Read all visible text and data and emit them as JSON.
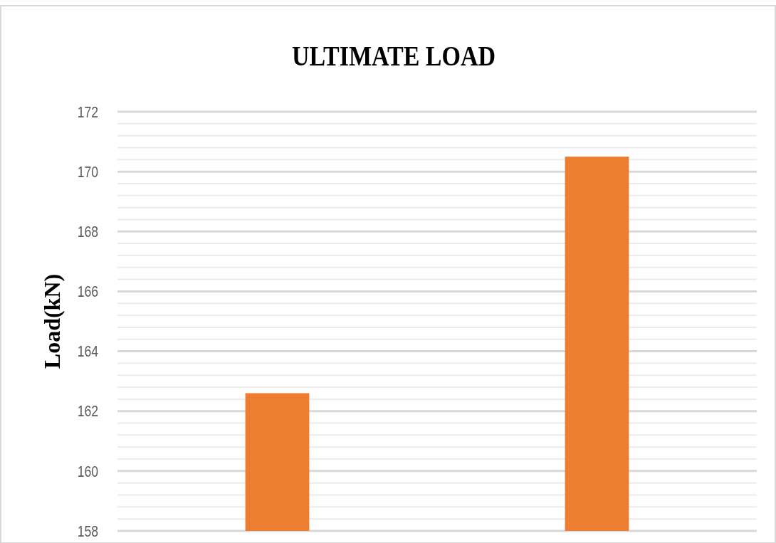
{
  "chart_data": {
    "type": "bar",
    "title": "ULTIMATE LOAD",
    "ylabel": "Load(kN)",
    "categories": [
      null,
      null
    ],
    "values": [
      162.6,
      170.5
    ],
    "color": "#ed7d31",
    "ylim": [
      158,
      172
    ],
    "yticks": [
      158,
      {
        "value": 158.4,
        "label": null
      },
      {
        "value": 158.8,
        "label": null
      },
      {
        "value": 159.2,
        "label": null
      },
      {
        "value": 159.6,
        "label": null
      },
      160,
      {
        "value": 160.4,
        "label": null
      },
      {
        "value": 160.8,
        "label": null
      },
      {
        "value": 161.2,
        "label": null
      },
      {
        "value": 161.6,
        "label": null
      },
      162,
      {
        "value": 162.4,
        "label": null
      },
      {
        "value": 162.8,
        "label": null
      },
      {
        "value": 163.2,
        "label": null
      },
      {
        "value": 163.6,
        "label": null
      },
      164,
      {
        "value": 164.4,
        "label": null
      },
      {
        "value": 164.8,
        "label": null
      },
      {
        "value": 165.2,
        "label": null
      },
      {
        "value": 165.6,
        "label": null
      },
      166,
      {
        "value": 166.4,
        "label": null
      },
      {
        "value": 166.8,
        "label": null
      },
      {
        "value": 167.2,
        "label": null
      },
      {
        "value": 167.6,
        "label": null
      },
      168,
      {
        "value": 168.4,
        "label": null
      },
      {
        "value": 168.8,
        "label": null
      },
      {
        "value": 169.2,
        "label": null
      },
      {
        "value": 169.6,
        "label": null
      },
      170,
      {
        "value": 170.4,
        "label": null
      },
      {
        "value": 170.8,
        "label": null
      },
      {
        "value": 171.2,
        "label": null
      },
      {
        "value": 171.6,
        "label": null
      },
      172
    ],
    "grid": "y"
  }
}
